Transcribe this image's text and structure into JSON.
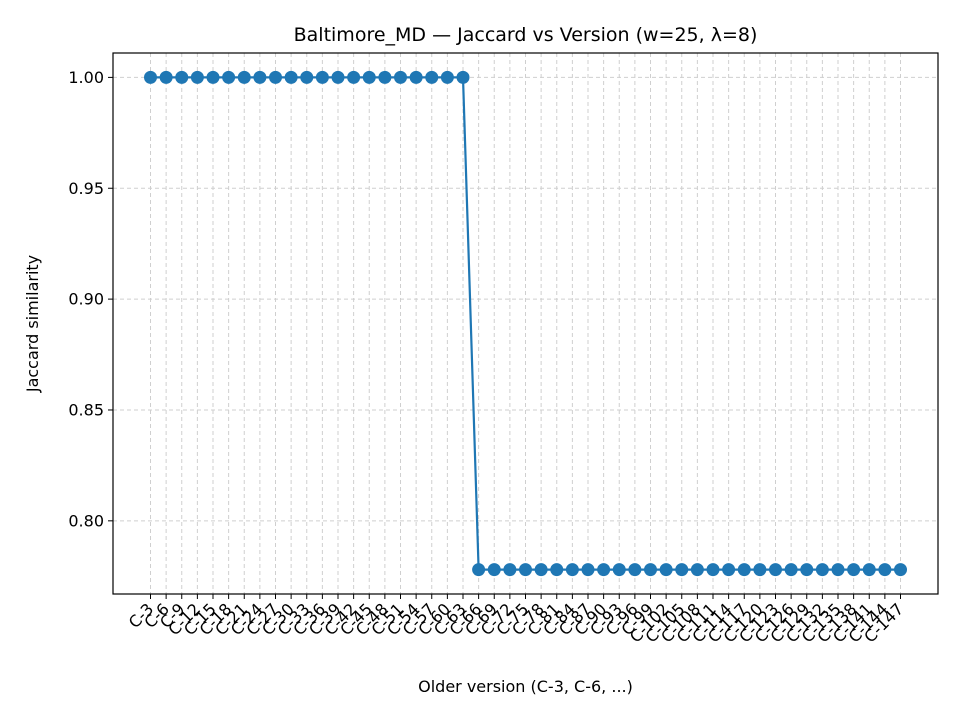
{
  "chart_data": {
    "type": "line",
    "title": "Baltimore_MD — Jaccard vs Version (w=25, λ=8)",
    "xlabel": "Older version (C-3, C-6, ...)",
    "ylabel": "Jaccard similarity",
    "categories": [
      "C-3",
      "C-6",
      "C-9",
      "C-12",
      "C-15",
      "C-18",
      "C-21",
      "C-24",
      "C-27",
      "C-30",
      "C-33",
      "C-36",
      "C-39",
      "C-42",
      "C-45",
      "C-48",
      "C-51",
      "C-54",
      "C-57",
      "C-60",
      "C-63",
      "C-66",
      "C-69",
      "C-72",
      "C-75",
      "C-78",
      "C-81",
      "C-84",
      "C-87",
      "C-90",
      "C-93",
      "C-96",
      "C-99",
      "C-102",
      "C-105",
      "C-108",
      "C-111",
      "C-114",
      "C-117",
      "C-120",
      "C-123",
      "C-126",
      "C-129",
      "C-132",
      "C-135",
      "C-138",
      "C-141",
      "C-144",
      "C-147"
    ],
    "series": [
      {
        "values": [
          1.0,
          1.0,
          1.0,
          1.0,
          1.0,
          1.0,
          1.0,
          1.0,
          1.0,
          1.0,
          1.0,
          1.0,
          1.0,
          1.0,
          1.0,
          1.0,
          1.0,
          1.0,
          1.0,
          1.0,
          1.0,
          0.778,
          0.778,
          0.778,
          0.778,
          0.778,
          0.778,
          0.778,
          0.778,
          0.778,
          0.778,
          0.778,
          0.778,
          0.778,
          0.778,
          0.778,
          0.778,
          0.778,
          0.778,
          0.778,
          0.778,
          0.778,
          0.778,
          0.778,
          0.778,
          0.778,
          0.778,
          0.778,
          0.778
        ],
        "color": "#1f77b4"
      }
    ],
    "yticks": [
      0.8,
      0.85,
      0.9,
      0.95,
      1.0
    ],
    "ytick_labels": [
      "0.80",
      "0.85",
      "0.90",
      "0.95",
      "1.00"
    ],
    "ylim": [
      0.767,
      1.011
    ],
    "grid": true,
    "grid_style": "dashed"
  }
}
